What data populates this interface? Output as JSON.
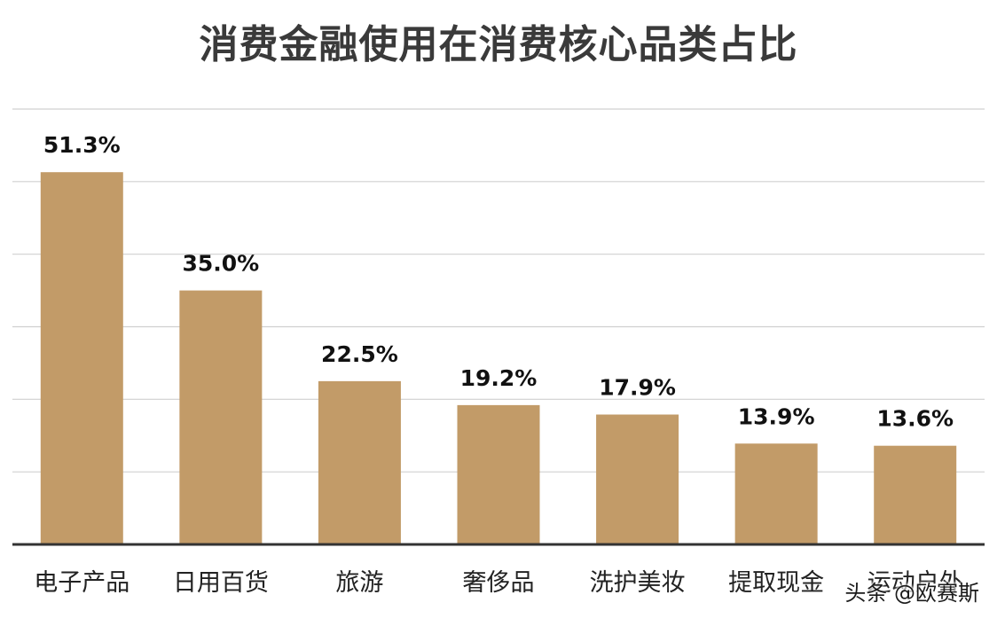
{
  "chart_data": {
    "type": "bar",
    "title": "消费金融使用在消费核心品类占比",
    "xlabel": "",
    "ylabel": "",
    "categories": [
      "电子产品",
      "日用百货",
      "旅游",
      "奢侈品",
      "洗护美妆",
      "提取现金",
      "运动户外"
    ],
    "values": [
      51.3,
      35.0,
      22.5,
      19.2,
      17.9,
      13.9,
      13.6
    ],
    "value_labels": [
      "51.3%",
      "35.0%",
      "22.5%",
      "19.2%",
      "17.9%",
      "13.9%",
      "13.6%"
    ],
    "ylim": [
      0,
      60
    ],
    "grid": true,
    "legend": "none",
    "colors": {
      "bar": "#c29b68",
      "grid": "#d0d0d0",
      "axis": "#333333",
      "text": "#111111"
    }
  },
  "watermark": "头条 @欧赛斯"
}
